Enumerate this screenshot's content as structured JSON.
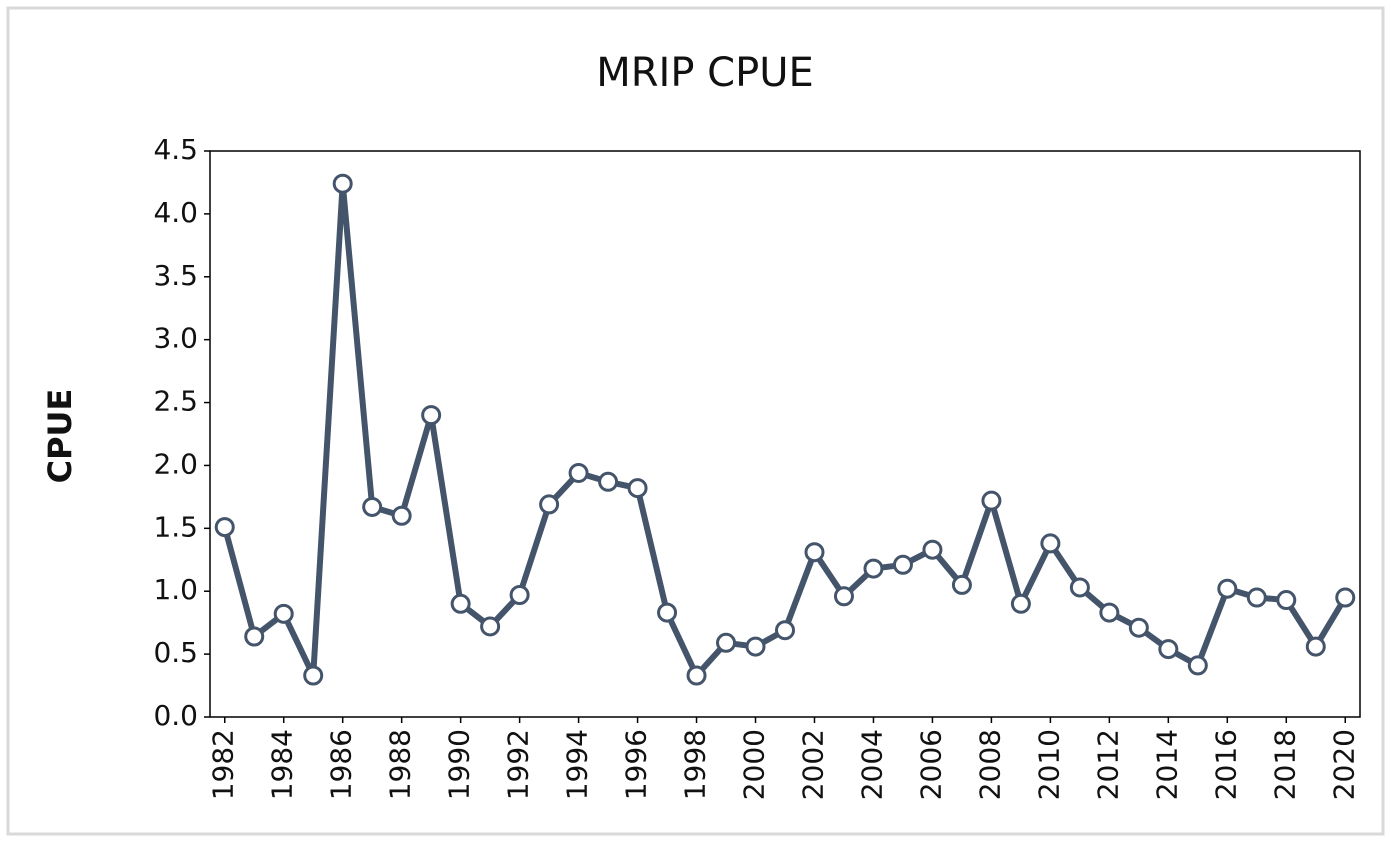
{
  "chart_data": {
    "type": "line",
    "title": "MRIP CPUE",
    "y_label": "CPUE",
    "categories": [
      "1982",
      null,
      "1984",
      null,
      "1986",
      null,
      "1988",
      null,
      "1990",
      null,
      "1992",
      null,
      "1994",
      null,
      "1996",
      null,
      "1998",
      null,
      "2000",
      null,
      "2002",
      null,
      "2004",
      null,
      "2006",
      null,
      "2008",
      null,
      "2010",
      null,
      "2012",
      null,
      "2014",
      null,
      "2016",
      null,
      "2018",
      null,
      "2020"
    ],
    "series": [
      {
        "color": "#44546a",
        "values": [
          1.51,
          0.64,
          0.82,
          0.33,
          4.24,
          1.67,
          1.6,
          2.4,
          0.9,
          0.72,
          0.97,
          1.69,
          1.94,
          1.87,
          1.82,
          0.83,
          0.33,
          0.59,
          0.56,
          0.69,
          1.31,
          0.96,
          1.18,
          1.21,
          1.33,
          1.05,
          1.72,
          0.9,
          1.38,
          1.03,
          0.83,
          0.71,
          0.54,
          0.41,
          1.02,
          0.95,
          0.93,
          0.56,
          0.95
        ]
      }
    ],
    "ylim": [
      0,
      4.5
    ],
    "yticks": [
      {
        "value": 0,
        "label": "0.0"
      },
      0.5,
      {
        "value": 1,
        "label": "1.0"
      },
      1.5,
      {
        "value": 2,
        "label": "2.0"
      },
      2.5,
      {
        "value": 3,
        "label": "3.0"
      },
      3.5,
      {
        "value": 4,
        "label": "4.0"
      },
      4.5
    ],
    "grid": false
  }
}
